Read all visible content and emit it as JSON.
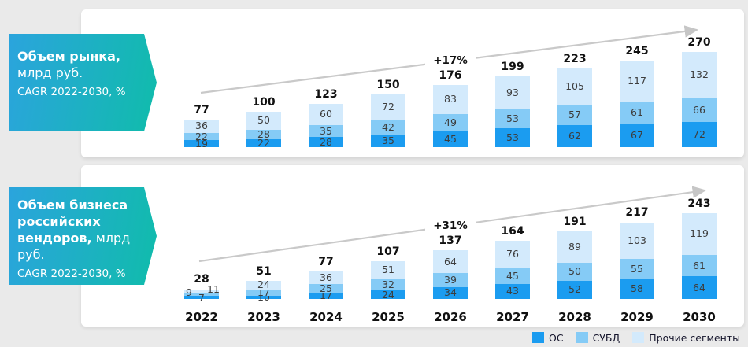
{
  "page": {
    "background_color": "#eaeaea"
  },
  "panels": [
    {
      "banner": {
        "title_bold": "Объем рынка,",
        "title_regular": "млрд руб.",
        "subtitle": "CAGR 2022-2030, %"
      },
      "growth_label": "+17%"
    },
    {
      "banner": {
        "title_bold": "Объем бизнеса российских вендоров,",
        "title_regular": "млрд руб.",
        "subtitle": "CAGR 2022-2030, %"
      },
      "growth_label": "+31%"
    }
  ],
  "years": [
    "2022",
    "2023",
    "2024",
    "2025",
    "2026",
    "2027",
    "2028",
    "2029",
    "2030"
  ],
  "legend": {
    "items": [
      {
        "label": "ОС",
        "color": "#1b9cf0"
      },
      {
        "label": "СУБД",
        "color": "#85cbf6"
      },
      {
        "label": "Прочие сегменты",
        "color": "#d3eafc"
      }
    ]
  },
  "chart_data": [
    {
      "type": "bar",
      "stacked": true,
      "title": "Объем рынка, млрд руб. CAGR 2022-2030, %",
      "ylabel": "млрд руб.",
      "categories": [
        "2022",
        "2023",
        "2024",
        "2025",
        "2026",
        "2027",
        "2028",
        "2029",
        "2030"
      ],
      "series": [
        {
          "name": "ОС",
          "color": "#1b9cf0",
          "values": [
            19,
            22,
            28,
            35,
            45,
            53,
            62,
            67,
            72
          ]
        },
        {
          "name": "СУБД",
          "color": "#85cbf6",
          "values": [
            22,
            28,
            35,
            42,
            49,
            53,
            57,
            61,
            66
          ]
        },
        {
          "name": "Прочие сегменты",
          "color": "#d3eafc",
          "values": [
            36,
            50,
            60,
            72,
            83,
            93,
            105,
            117,
            132
          ]
        }
      ],
      "totals": [
        77,
        100,
        123,
        150,
        176,
        199,
        223,
        245,
        270
      ],
      "annotation": "+17%",
      "annotation_x": "2026",
      "legend_position": "bottom-right",
      "grid": false
    },
    {
      "type": "bar",
      "stacked": true,
      "title": "Объем бизнеса российских вендоров, млрд руб. CAGR 2022-2030, %",
      "ylabel": "млрд руб.",
      "categories": [
        "2022",
        "2023",
        "2024",
        "2025",
        "2026",
        "2027",
        "2028",
        "2029",
        "2030"
      ],
      "series": [
        {
          "name": "ОС",
          "color": "#1b9cf0",
          "values": [
            9,
            10,
            17,
            24,
            34,
            43,
            52,
            58,
            64
          ]
        },
        {
          "name": "СУБД",
          "color": "#85cbf6",
          "values": [
            7,
            17,
            25,
            32,
            39,
            45,
            50,
            55,
            61
          ]
        },
        {
          "name": "Прочие сегменты",
          "color": "#d3eafc",
          "values": [
            11,
            24,
            36,
            51,
            64,
            76,
            89,
            103,
            119
          ]
        }
      ],
      "totals": [
        28,
        51,
        77,
        107,
        137,
        164,
        191,
        217,
        243
      ],
      "annotation": "+31%",
      "annotation_x": "2026",
      "legend_position": "bottom-right",
      "grid": false
    }
  ]
}
